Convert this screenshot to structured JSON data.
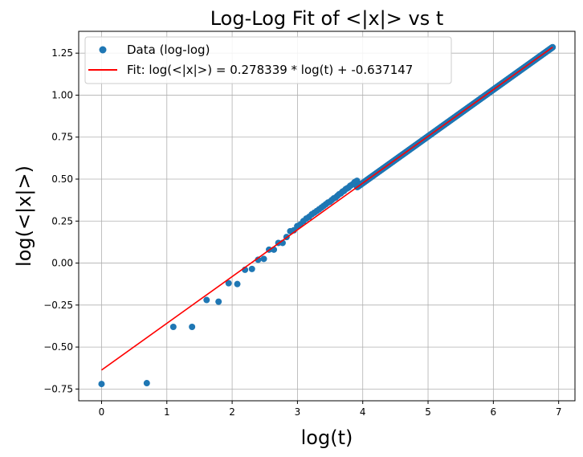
{
  "chart_data": {
    "type": "scatter",
    "title": "Log-Log Fit of <|x|> vs t",
    "xlabel": "log(t)",
    "ylabel": "log(<|x|>)",
    "xlim": [
      -0.35,
      7.25
    ],
    "ylim": [
      -0.82,
      1.38
    ],
    "xticks": [
      0,
      1,
      2,
      3,
      4,
      5,
      6,
      7
    ],
    "yticks": [
      -0.75,
      -0.5,
      -0.25,
      0.0,
      0.25,
      0.5,
      0.75,
      1.0,
      1.25
    ],
    "ytick_labels": [
      "−0.75",
      "−0.50",
      "−0.25",
      "0.00",
      "0.25",
      "0.50",
      "0.75",
      "1.00",
      "1.25"
    ],
    "grid": true,
    "legend_position": "top-left",
    "series": [
      {
        "name": "Data (log-log)",
        "kind": "scatter",
        "color": "#1f77b4",
        "x": [
          0.0,
          0.693,
          1.099,
          1.386,
          1.609,
          1.792,
          1.946,
          2.079,
          2.197,
          2.303,
          2.398,
          2.485,
          2.565,
          2.639,
          2.708,
          2.773,
          2.833,
          2.89,
          2.944,
          2.996,
          3.045,
          3.091,
          3.136,
          3.178,
          3.219,
          3.258,
          3.296,
          3.332,
          3.367,
          3.401,
          3.434,
          3.466,
          3.497,
          3.526,
          3.555,
          3.584,
          3.611,
          3.638,
          3.664,
          3.689,
          3.714,
          3.738,
          3.761,
          3.784,
          3.807,
          3.829,
          3.85,
          3.871,
          3.892,
          3.912
        ],
        "y": [
          -0.72,
          -0.715,
          -0.38,
          -0.38,
          -0.22,
          -0.23,
          -0.12,
          -0.125,
          -0.04,
          -0.035,
          0.02,
          0.025,
          0.08,
          0.08,
          0.12,
          0.12,
          0.155,
          0.19,
          0.195,
          0.22,
          0.23,
          0.25,
          0.265,
          0.275,
          0.29,
          0.3,
          0.31,
          0.32,
          0.33,
          0.34,
          0.35,
          0.36,
          0.365,
          0.375,
          0.385,
          0.39,
          0.4,
          0.41,
          0.415,
          0.425,
          0.43,
          0.44,
          0.445,
          0.45,
          0.46,
          0.465,
          0.47,
          0.48,
          0.485,
          0.49
        ],
        "dense_range": {
          "x_start": 3.912,
          "x_end": 6.908,
          "n": 950,
          "slope": 0.2783,
          "intercept": -0.6371
        }
      },
      {
        "name": "Fit: log(<|x|>) = 0.278339 * log(t) + -0.637147",
        "kind": "line",
        "color": "#ff0000",
        "slope": 0.278339,
        "intercept": -0.637147,
        "x_range": [
          0.0,
          6.908
        ]
      }
    ]
  }
}
